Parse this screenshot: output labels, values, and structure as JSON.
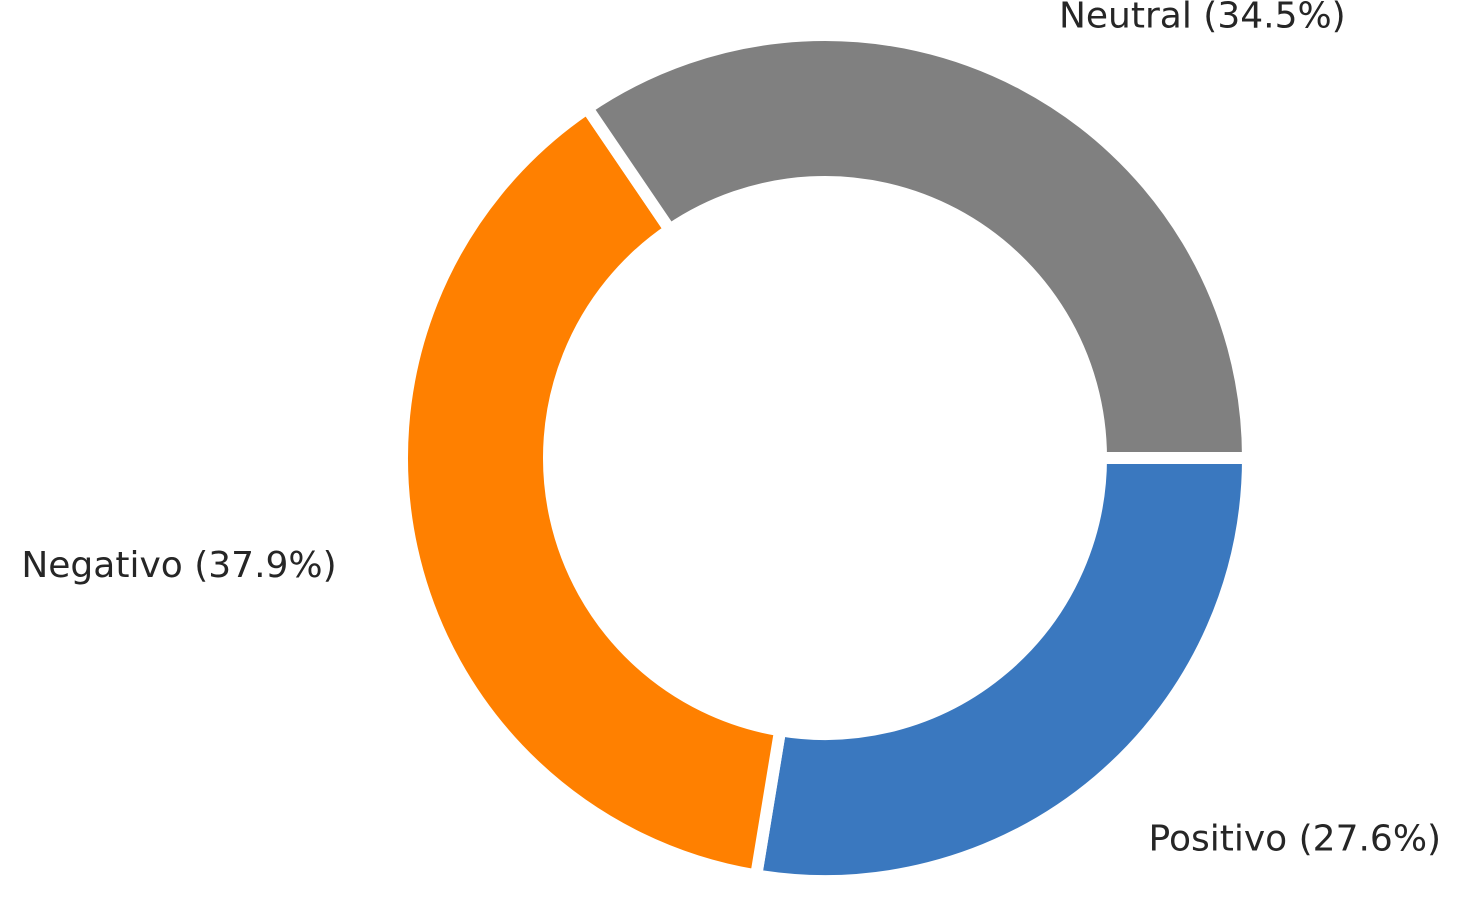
{
  "chart_data": {
    "type": "pie",
    "variant": "donut",
    "title": "",
    "start_angle_deg": 0,
    "direction": "clockwise",
    "slices": [
      {
        "label": "Positivo (27.6%)",
        "category": "Positivo",
        "percent": 27.6,
        "color": "#3a78bf"
      },
      {
        "label": "Negativo (37.9%)",
        "category": "Negativo",
        "percent": 37.9,
        "color": "#ff8000"
      },
      {
        "label": "Neutral (34.5%)",
        "category": "Neutral",
        "percent": 34.5,
        "color": "#808080"
      }
    ],
    "legend": "none",
    "grid": false
  }
}
